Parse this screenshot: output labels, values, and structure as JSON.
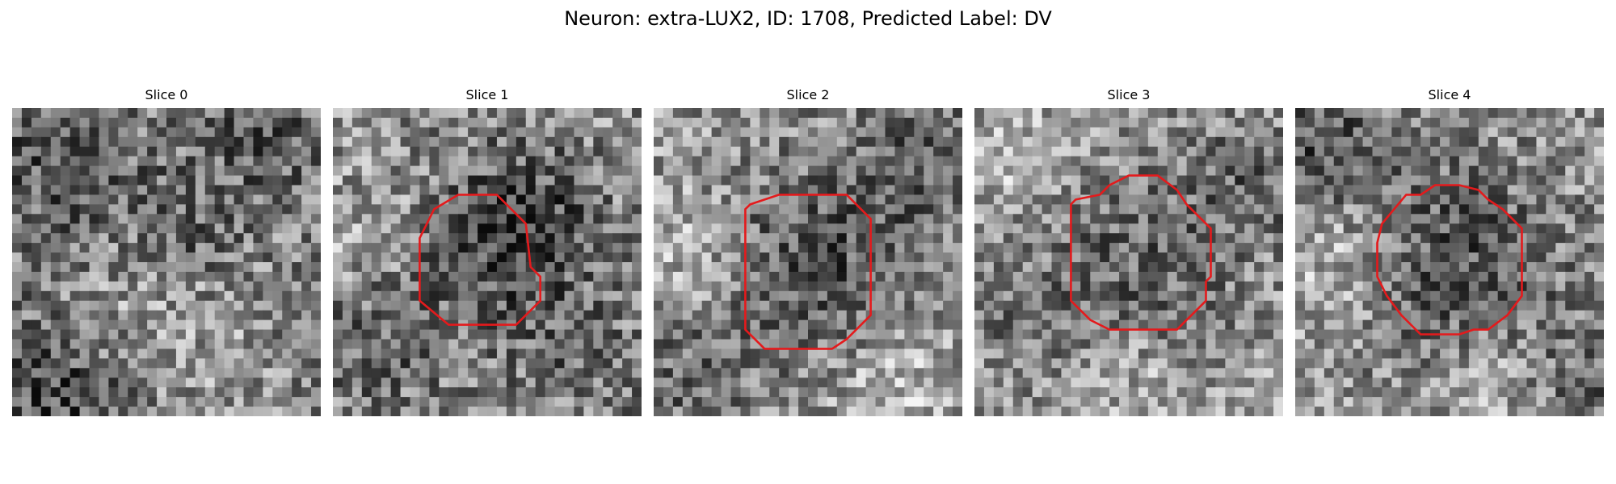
{
  "figure": {
    "title": "Neuron: extra-LUX2, ID: 1708, Predicted Label: DV"
  },
  "slices": [
    {
      "title": "Slice 0",
      "has_contour": false
    },
    {
      "title": "Slice 1",
      "has_contour": true
    },
    {
      "title": "Slice 2",
      "has_contour": true
    },
    {
      "title": "Slice 3",
      "has_contour": true
    },
    {
      "title": "Slice 4",
      "has_contour": true
    }
  ],
  "colors": {
    "contour": "#e41a1c",
    "background": "#ffffff"
  }
}
